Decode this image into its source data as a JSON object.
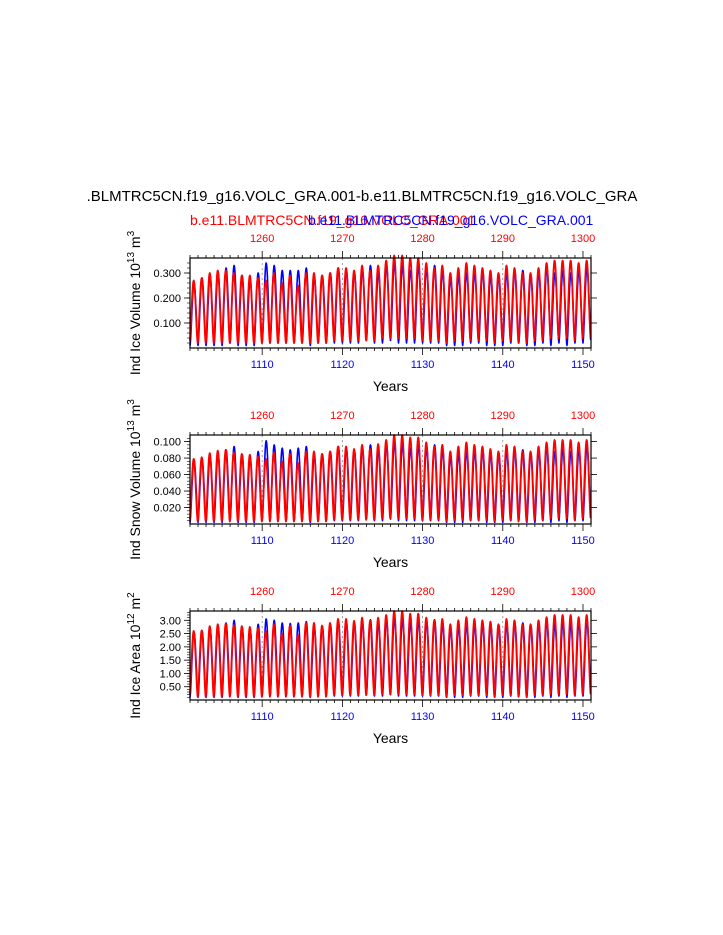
{
  "figure": {
    "title": ".BLMTRC5CN.f19_g16.VOLC_GRA.001-b.e11.BLMTRC5CN.f19_g16.VOLC_GRA",
    "subtitle_red": "b.e11.BLMTRC5CN.f19_g16.VOLC_GRA.001",
    "subtitle_blue": "b.e11.BLMTRC5CN.f19_g16.VOLC_GRA.001",
    "colors": {
      "series_a": "#0000ff",
      "series_b": "#ff0000",
      "axis": "#000000",
      "ref_line": "#888888"
    }
  },
  "chart_data": [
    {
      "type": "line",
      "ylabel": "Ind Ice Volume 10",
      "ylabel_exp": "13",
      "ylabel_unit": " m",
      "ylabel_unit_exp": "3",
      "xlabel": "Years",
      "xlim_bottom": [
        1101,
        1151
      ],
      "xlim_top": [
        1251,
        1301
      ],
      "ylim": [
        0.0,
        0.36
      ],
      "yticks": [
        "0.100",
        "0.200",
        "0.300"
      ],
      "ytick_values": [
        0.1,
        0.2,
        0.3
      ],
      "xticks_bottom": [
        "1110",
        "1120",
        "1130",
        "1140",
        "1150"
      ],
      "xticks_top": [
        "1260",
        "1270",
        "1280",
        "1290",
        "1300"
      ],
      "series": [
        {
          "color": "#0000ff",
          "peaks": [
            0.26,
            0.28,
            0.29,
            0.3,
            0.32,
            0.33,
            0.29,
            0.27,
            0.3,
            0.34,
            0.33,
            0.31,
            0.31,
            0.31,
            0.32,
            0.28,
            0.29,
            0.3,
            0.32,
            0.31,
            0.3,
            0.31,
            0.33,
            0.3,
            0.33,
            0.34,
            0.33,
            0.31,
            0.33,
            0.32,
            0.33,
            0.31,
            0.28,
            0.29,
            0.3,
            0.3,
            0.31,
            0.29,
            0.29,
            0.3,
            0.31,
            0.31,
            0.29,
            0.3,
            0.32,
            0.3,
            0.31,
            0.3,
            0.31,
            0.32
          ],
          "troughs": [
            0.01,
            0.01,
            0.01,
            0.01,
            0.01,
            0.02,
            0.01,
            0.01,
            0.01,
            0.02,
            0.02,
            0.02,
            0.02,
            0.02,
            0.02,
            0.01,
            0.02,
            0.02,
            0.02,
            0.02,
            0.02,
            0.02,
            0.03,
            0.02,
            0.02,
            0.03,
            0.02,
            0.02,
            0.02,
            0.02,
            0.02,
            0.02,
            0.01,
            0.01,
            0.01,
            0.02,
            0.02,
            0.01,
            0.01,
            0.01,
            0.02,
            0.02,
            0.01,
            0.01,
            0.02,
            0.01,
            0.02,
            0.01,
            0.02,
            0.02
          ]
        },
        {
          "color": "#ff0000",
          "peaks": [
            0.27,
            0.28,
            0.3,
            0.31,
            0.31,
            0.3,
            0.29,
            0.29,
            0.28,
            0.27,
            0.3,
            0.26,
            0.29,
            0.25,
            0.3,
            0.3,
            0.29,
            0.3,
            0.32,
            0.32,
            0.31,
            0.33,
            0.31,
            0.33,
            0.35,
            0.37,
            0.37,
            0.36,
            0.36,
            0.34,
            0.32,
            0.33,
            0.3,
            0.32,
            0.34,
            0.33,
            0.32,
            0.31,
            0.3,
            0.33,
            0.32,
            0.3,
            0.3,
            0.32,
            0.34,
            0.35,
            0.35,
            0.35,
            0.34,
            0.35
          ],
          "troughs": [
            0.02,
            0.02,
            0.02,
            0.02,
            0.02,
            0.02,
            0.02,
            0.02,
            0.02,
            0.02,
            0.02,
            0.02,
            0.02,
            0.02,
            0.02,
            0.02,
            0.02,
            0.02,
            0.03,
            0.03,
            0.03,
            0.03,
            0.03,
            0.03,
            0.04,
            0.04,
            0.04,
            0.04,
            0.04,
            0.03,
            0.03,
            0.03,
            0.02,
            0.03,
            0.03,
            0.03,
            0.03,
            0.03,
            0.02,
            0.03,
            0.03,
            0.02,
            0.02,
            0.03,
            0.03,
            0.04,
            0.04,
            0.04,
            0.03,
            0.04
          ]
        }
      ]
    },
    {
      "type": "line",
      "ylabel": "Ind Snow Volume 10",
      "ylabel_exp": "13",
      "ylabel_unit": " m",
      "ylabel_unit_exp": "3",
      "xlabel": "Years",
      "xlim_bottom": [
        1101,
        1151
      ],
      "xlim_top": [
        1251,
        1301
      ],
      "ylim": [
        0.0,
        0.108
      ],
      "yticks": [
        "0.020",
        "0.040",
        "0.060",
        "0.080",
        "0.100"
      ],
      "ytick_values": [
        0.02,
        0.04,
        0.06,
        0.08,
        0.1
      ],
      "xticks_bottom": [
        "1110",
        "1120",
        "1130",
        "1140",
        "1150"
      ],
      "xticks_top": [
        "1260",
        "1270",
        "1280",
        "1290",
        "1300"
      ],
      "series": [
        {
          "color": "#0000ff",
          "peaks": [
            0.078,
            0.08,
            0.082,
            0.085,
            0.09,
            0.094,
            0.084,
            0.08,
            0.088,
            0.101,
            0.096,
            0.092,
            0.09,
            0.092,
            0.094,
            0.082,
            0.085,
            0.088,
            0.094,
            0.091,
            0.089,
            0.092,
            0.096,
            0.089,
            0.096,
            0.099,
            0.097,
            0.092,
            0.096,
            0.094,
            0.096,
            0.091,
            0.082,
            0.085,
            0.088,
            0.088,
            0.09,
            0.086,
            0.086,
            0.088,
            0.09,
            0.09,
            0.086,
            0.088,
            0.093,
            0.088,
            0.091,
            0.088,
            0.09,
            0.094
          ],
          "troughs": [
            0.002,
            0.002,
            0.002,
            0.002,
            0.002,
            0.004,
            0.002,
            0.002,
            0.002,
            0.004,
            0.004,
            0.004,
            0.004,
            0.004,
            0.004,
            0.002,
            0.004,
            0.004,
            0.004,
            0.004,
            0.004,
            0.004,
            0.006,
            0.004,
            0.004,
            0.006,
            0.004,
            0.004,
            0.004,
            0.004,
            0.004,
            0.004,
            0.002,
            0.002,
            0.002,
            0.004,
            0.004,
            0.002,
            0.002,
            0.002,
            0.004,
            0.004,
            0.002,
            0.002,
            0.004,
            0.002,
            0.004,
            0.002,
            0.004,
            0.004
          ]
        },
        {
          "color": "#ff0000",
          "peaks": [
            0.079,
            0.081,
            0.086,
            0.089,
            0.09,
            0.087,
            0.085,
            0.084,
            0.082,
            0.079,
            0.087,
            0.076,
            0.085,
            0.074,
            0.088,
            0.088,
            0.085,
            0.088,
            0.094,
            0.094,
            0.091,
            0.096,
            0.091,
            0.097,
            0.102,
            0.108,
            0.108,
            0.105,
            0.105,
            0.099,
            0.094,
            0.096,
            0.088,
            0.094,
            0.099,
            0.096,
            0.094,
            0.091,
            0.088,
            0.096,
            0.094,
            0.088,
            0.088,
            0.094,
            0.099,
            0.102,
            0.102,
            0.102,
            0.099,
            0.102
          ],
          "troughs": [
            0.003,
            0.003,
            0.003,
            0.003,
            0.003,
            0.003,
            0.003,
            0.003,
            0.003,
            0.003,
            0.003,
            0.003,
            0.003,
            0.003,
            0.003,
            0.003,
            0.003,
            0.003,
            0.005,
            0.005,
            0.005,
            0.005,
            0.005,
            0.005,
            0.007,
            0.007,
            0.007,
            0.007,
            0.007,
            0.005,
            0.005,
            0.005,
            0.003,
            0.005,
            0.005,
            0.005,
            0.005,
            0.005,
            0.003,
            0.005,
            0.005,
            0.003,
            0.003,
            0.005,
            0.005,
            0.007,
            0.007,
            0.007,
            0.005,
            0.007
          ]
        }
      ]
    },
    {
      "type": "line",
      "ylabel": "Ind Ice Area 10",
      "ylabel_exp": "12",
      "ylabel_unit": " m",
      "ylabel_unit_exp": "2",
      "xlabel": "Years",
      "xlim_bottom": [
        1101,
        1151
      ],
      "xlim_top": [
        1251,
        1301
      ],
      "ylim": [
        0.0,
        3.35
      ],
      "yticks": [
        "0.50",
        "1.00",
        "1.50",
        "2.00",
        "2.50",
        "3.00"
      ],
      "ytick_values": [
        0.5,
        1.0,
        1.5,
        2.0,
        2.5,
        3.0
      ],
      "xticks_bottom": [
        "1110",
        "1120",
        "1130",
        "1140",
        "1150"
      ],
      "xticks_top": [
        "1260",
        "1270",
        "1280",
        "1290",
        "1300"
      ],
      "series": [
        {
          "color": "#0000ff",
          "peaks": [
            2.55,
            2.6,
            2.7,
            2.78,
            2.9,
            3.0,
            2.75,
            2.65,
            2.85,
            3.05,
            3.0,
            2.9,
            2.88,
            2.9,
            2.95,
            2.7,
            2.78,
            2.85,
            2.98,
            2.92,
            2.88,
            2.92,
            3.02,
            2.88,
            3.02,
            3.08,
            3.04,
            2.92,
            3.02,
            2.98,
            3.02,
            2.92,
            2.7,
            2.78,
            2.85,
            2.85,
            2.9,
            2.82,
            2.82,
            2.85,
            2.9,
            2.9,
            2.82,
            2.85,
            2.95,
            2.85,
            2.92,
            2.85,
            2.9,
            2.98
          ],
          "troughs": [
            0.1,
            0.1,
            0.1,
            0.1,
            0.1,
            0.15,
            0.1,
            0.1,
            0.1,
            0.15,
            0.15,
            0.15,
            0.15,
            0.15,
            0.15,
            0.1,
            0.15,
            0.15,
            0.15,
            0.15,
            0.15,
            0.15,
            0.2,
            0.15,
            0.15,
            0.2,
            0.15,
            0.15,
            0.15,
            0.15,
            0.15,
            0.15,
            0.1,
            0.1,
            0.1,
            0.15,
            0.15,
            0.1,
            0.1,
            0.1,
            0.15,
            0.15,
            0.1,
            0.1,
            0.15,
            0.1,
            0.15,
            0.1,
            0.15,
            0.15
          ]
        },
        {
          "color": "#ff0000",
          "peaks": [
            2.6,
            2.62,
            2.78,
            2.85,
            2.88,
            2.82,
            2.78,
            2.75,
            2.7,
            2.6,
            2.85,
            2.5,
            2.8,
            2.45,
            2.9,
            2.9,
            2.8,
            2.9,
            3.05,
            3.05,
            2.98,
            3.1,
            2.98,
            3.1,
            3.2,
            3.35,
            3.35,
            3.25,
            3.25,
            3.1,
            3.0,
            3.05,
            2.85,
            3.0,
            3.12,
            3.05,
            3.0,
            2.95,
            2.85,
            3.05,
            3.0,
            2.85,
            2.85,
            3.0,
            3.12,
            3.2,
            3.2,
            3.2,
            3.12,
            3.2
          ],
          "troughs": [
            0.12,
            0.12,
            0.12,
            0.12,
            0.12,
            0.12,
            0.12,
            0.12,
            0.12,
            0.12,
            0.12,
            0.12,
            0.12,
            0.12,
            0.12,
            0.12,
            0.12,
            0.12,
            0.18,
            0.18,
            0.18,
            0.18,
            0.18,
            0.18,
            0.22,
            0.22,
            0.22,
            0.22,
            0.22,
            0.18,
            0.18,
            0.18,
            0.12,
            0.18,
            0.18,
            0.18,
            0.18,
            0.18,
            0.12,
            0.18,
            0.18,
            0.12,
            0.12,
            0.18,
            0.18,
            0.22,
            0.22,
            0.22,
            0.18,
            0.22
          ]
        }
      ]
    }
  ]
}
